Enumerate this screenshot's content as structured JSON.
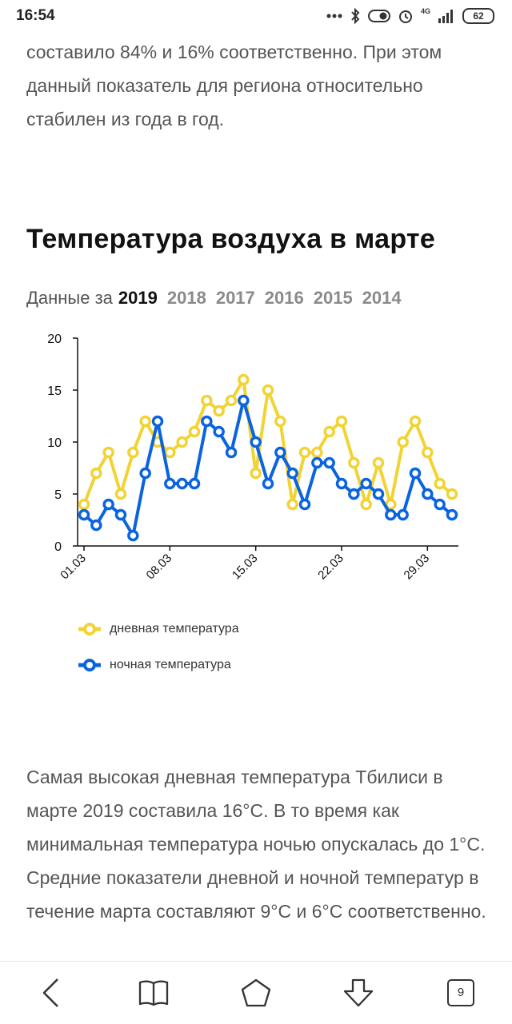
{
  "status_bar": {
    "time": "16:54",
    "network": "4G",
    "battery": "62"
  },
  "intro_text": "составило 84% и 16% соответственно. При этом данный показатель для региона относительно стабилен из года в год.",
  "section_title": "Температура воздуха в марте",
  "year_selector": {
    "prefix": "Данные за",
    "years": [
      "2019",
      "2018",
      "2017",
      "2016",
      "2015",
      "2014"
    ],
    "active": "2019"
  },
  "chart_data": {
    "type": "line",
    "x": [
      "01.03",
      "02.03",
      "03.03",
      "04.03",
      "05.03",
      "06.03",
      "07.03",
      "08.03",
      "09.03",
      "10.03",
      "11.03",
      "12.03",
      "13.03",
      "14.03",
      "15.03",
      "16.03",
      "17.03",
      "18.03",
      "19.03",
      "20.03",
      "21.03",
      "22.03",
      "23.03",
      "24.03",
      "25.03",
      "26.03",
      "27.03",
      "28.03",
      "29.03",
      "30.03",
      "31.03"
    ],
    "x_tick_labels": [
      "01.03",
      "08.03",
      "15.03",
      "22.03",
      "29.03"
    ],
    "series": [
      {
        "name": "дневная температура",
        "color": "#f2d334",
        "values": [
          4,
          7,
          9,
          5,
          9,
          12,
          10,
          9,
          10,
          11,
          14,
          13,
          14,
          16,
          7,
          15,
          12,
          4,
          9,
          9,
          11,
          12,
          8,
          4,
          8,
          4,
          10,
          12,
          9,
          6,
          5
        ]
      },
      {
        "name": "ночная температура",
        "color": "#0a64e0",
        "values": [
          3,
          2,
          4,
          3,
          1,
          7,
          12,
          6,
          6,
          6,
          12,
          11,
          9,
          14,
          10,
          6,
          9,
          7,
          4,
          8,
          8,
          6,
          5,
          6,
          5,
          3,
          3,
          7,
          5,
          4,
          3
        ]
      }
    ],
    "ylim": [
      0,
      20
    ],
    "y_ticks": [
      0,
      5,
      10,
      15,
      20
    ],
    "grid": false,
    "legend_position": "bottom-left"
  },
  "legend": {
    "day_label": "дневная температура",
    "night_label": "ночная температура"
  },
  "body_text": "Самая высокая дневная температура Тбилиси в марте 2019 составила 16°C. В то время как минимальная температура ночью опускалась до 1°C. Средние показатели дневной и ночной температур в течение марта составляют 9°C и 6°C соответственно.",
  "nav_bar": {
    "tab_count": "9",
    "icons": [
      "back-icon",
      "book-icon",
      "home-icon",
      "download-icon",
      "tabs-icon"
    ]
  }
}
